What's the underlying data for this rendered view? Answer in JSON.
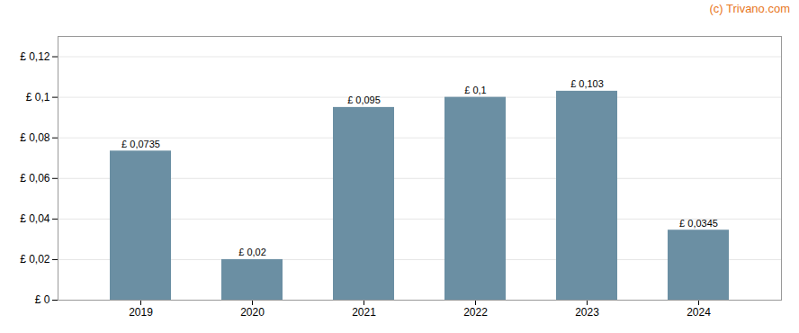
{
  "chart_data": {
    "type": "bar",
    "categories": [
      "2019",
      "2020",
      "2021",
      "2022",
      "2023",
      "2024"
    ],
    "values": [
      0.0735,
      0.02,
      0.095,
      0.1,
      0.103,
      0.0345
    ],
    "value_labels": [
      "£ 0,0735",
      "£ 0,02",
      "£ 0,095",
      "£ 0,1",
      "£ 0,103",
      "£ 0,0345"
    ],
    "color": "#6b8fa3",
    "ylim": [
      0,
      0.13
    ],
    "yticks": [
      {
        "value": 0,
        "label": "£ 0"
      },
      {
        "value": 0.02,
        "label": "£ 0,02"
      },
      {
        "value": 0.04,
        "label": "£ 0,04"
      },
      {
        "value": 0.06,
        "label": "£ 0,06"
      },
      {
        "value": 0.08,
        "label": "£ 0,08"
      },
      {
        "value": 0.1,
        "label": "£ 0,1"
      },
      {
        "value": 0.12,
        "label": "£ 0,12"
      }
    ],
    "grid": true,
    "data_labels": true,
    "annotations": [
      "(c) Trivano.com"
    ]
  }
}
